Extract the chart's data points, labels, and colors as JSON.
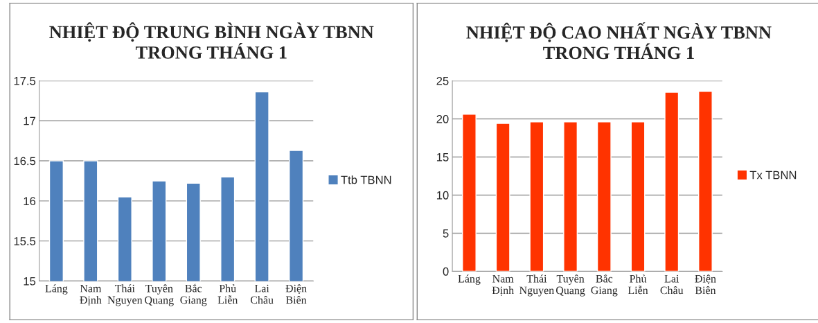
{
  "chart_data": [
    {
      "type": "bar",
      "title": "NHIỆT ĐỘ TRUNG BÌNH NGÀY TBNN\nTRONG THÁNG 1",
      "categories": [
        "Láng",
        "Nam\nĐịnh",
        "Thái\nNguyen",
        "Tuyên\nQuang",
        "Bắc\nGiang",
        "Phủ\nLiễn",
        "Lai\nChâu",
        "Điện\nBiên"
      ],
      "series": [
        {
          "name": "Ttb TBNN",
          "color": "#4f81bd",
          "values": [
            16.5,
            16.5,
            16.05,
            16.25,
            16.22,
            16.3,
            17.36,
            16.63
          ]
        }
      ],
      "ylim": [
        15,
        17.5
      ],
      "yticks": [
        15,
        15.5,
        16,
        16.5,
        17,
        17.5
      ],
      "grid": "y",
      "legend": "right"
    },
    {
      "type": "bar",
      "title": "NHIỆT ĐỘ CAO NHẤT NGÀY TBNN\nTRONG THÁNG 1",
      "categories": [
        "Láng",
        "Nam\nĐịnh",
        "Thái\nNguyen",
        "Tuyên\nQuang",
        "Bắc\nGiang",
        "Phủ\nLiễn",
        "Lai\nChâu",
        "Điện\nBiên"
      ],
      "series": [
        {
          "name": "Tx TBNN",
          "color": "#ff3300",
          "values": [
            20.6,
            19.4,
            19.6,
            19.6,
            19.6,
            19.6,
            23.5,
            23.6
          ]
        }
      ],
      "ylim": [
        0,
        25
      ],
      "yticks": [
        0,
        5,
        10,
        15,
        20,
        25
      ],
      "grid": "y",
      "legend": "right"
    }
  ]
}
